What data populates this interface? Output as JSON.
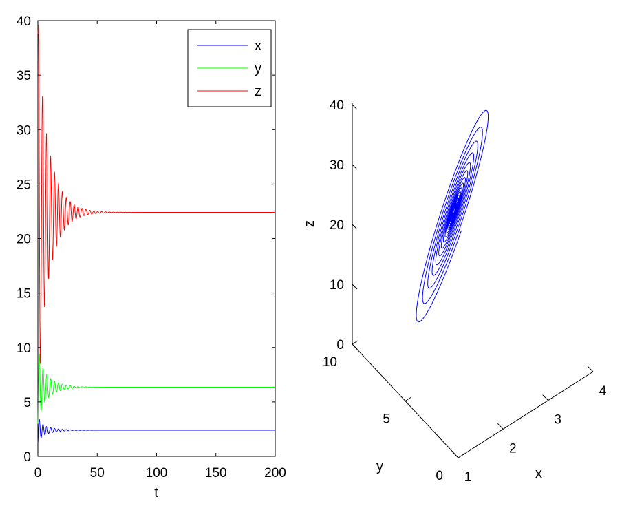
{
  "chart_data": [
    {
      "type": "line",
      "xlabel": "t",
      "ylabel": "",
      "xlim": [
        0,
        200
      ],
      "ylim": [
        0,
        40
      ],
      "xticks": [
        "0",
        "50",
        "100",
        "150",
        "200"
      ],
      "yticks": [
        "0",
        "5",
        "10",
        "15",
        "20",
        "25",
        "30",
        "35",
        "40"
      ],
      "legend_position": "top-right",
      "series": [
        {
          "name": "x",
          "color": "#0000ff",
          "initial": 1.2,
          "final": 2.4,
          "oscillation": "damped, settles by t≈20"
        },
        {
          "name": "y",
          "color": "#00ff00",
          "initial": 3.0,
          "final": 6.35,
          "oscillation": "damped, settles by t≈25"
        },
        {
          "name": "z",
          "color": "#ff0000",
          "initial": 39,
          "final": 22.4,
          "oscillation": "damped, amplitude ~±12, settles by t≈30"
        }
      ]
    },
    {
      "type": "line3d",
      "xlabel": "x",
      "ylabel": "y",
      "zlabel": "z",
      "xlim": [
        1,
        4
      ],
      "ylim": [
        0,
        10
      ],
      "zlim": [
        0,
        40
      ],
      "xticks": [
        "1",
        "2",
        "3",
        "4"
      ],
      "yticks": [
        "0",
        "5",
        "10"
      ],
      "zticks": [
        "0",
        "10",
        "20",
        "30",
        "40"
      ],
      "grid": false,
      "series": [
        {
          "color": "#0000ff",
          "description": "trajectory spiralling inward to equilibrium",
          "equilibrium": {
            "x": 2.4,
            "y": 6.35,
            "z": 22.4
          }
        }
      ]
    }
  ]
}
